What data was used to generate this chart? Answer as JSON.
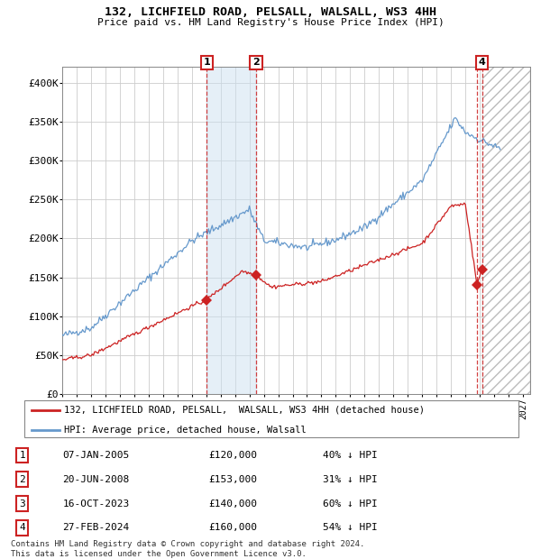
{
  "title": "132, LICHFIELD ROAD, PELSALL, WALSALL, WS3 4HH",
  "subtitle": "Price paid vs. HM Land Registry's House Price Index (HPI)",
  "xlim_start": 1995.0,
  "xlim_end": 2027.5,
  "ylim": [
    0,
    420000
  ],
  "yticks": [
    0,
    50000,
    100000,
    150000,
    200000,
    250000,
    300000,
    350000,
    400000
  ],
  "ytick_labels": [
    "£0",
    "£50K",
    "£100K",
    "£150K",
    "£200K",
    "£250K",
    "£300K",
    "£350K",
    "£400K"
  ],
  "hpi_color": "#6699cc",
  "price_color": "#cc2222",
  "background_color": "#ffffff",
  "grid_color": "#cccccc",
  "transactions": [
    {
      "num": 1,
      "date": "07-JAN-2005",
      "price": 120000,
      "pct": "40%",
      "year": 2005.03
    },
    {
      "num": 2,
      "date": "20-JUN-2008",
      "price": 153000,
      "pct": "31%",
      "year": 2008.47
    },
    {
      "num": 3,
      "date": "16-OCT-2023",
      "price": 140000,
      "pct": "60%",
      "year": 2023.79
    },
    {
      "num": 4,
      "date": "27-FEB-2024",
      "price": 160000,
      "pct": "54%",
      "year": 2024.16
    }
  ],
  "legend_label_price": "132, LICHFIELD ROAD, PELSALL,  WALSALL, WS3 4HH (detached house)",
  "legend_label_hpi": "HPI: Average price, detached house, Walsall",
  "footnote": "Contains HM Land Registry data © Crown copyright and database right 2024.\nThis data is licensed under the Open Government Licence v3.0.",
  "hatch_region_start": 2024.16,
  "hatch_region_end": 2027.5,
  "shade_region_1_start": 2005.03,
  "shade_region_1_end": 2008.47,
  "box_nums": {
    "1": 2005.03,
    "2": 2008.47,
    "4": 2024.16
  }
}
